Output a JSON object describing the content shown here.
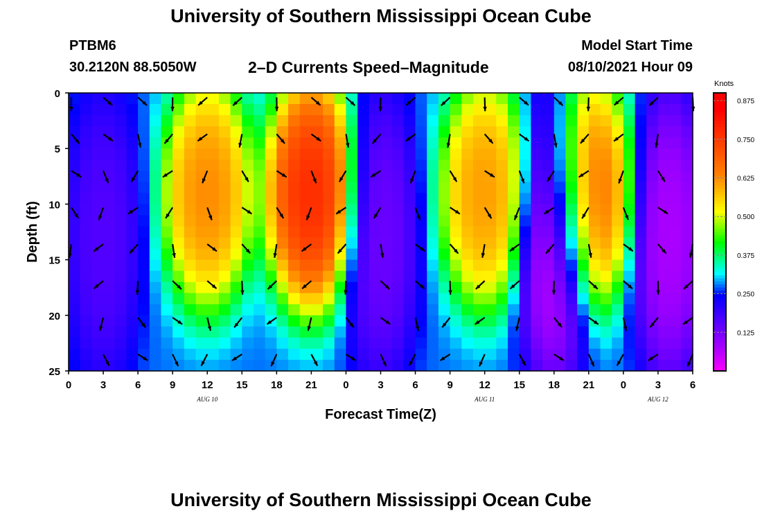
{
  "header": {
    "title": "University of Southern Mississippi Ocean Cube",
    "station": "PTBM6",
    "coordinates": "30.2120N  88.5050W",
    "subtitle": "2–D Currents Speed–Magnitude",
    "model_start_label": "Model Start Time",
    "model_start_value": "08/10/2021 Hour 09"
  },
  "footer": {
    "title": "University of Southern Mississippi Ocean Cube"
  },
  "chart_data": {
    "type": "heatmap",
    "xlabel": "Forecast Time(Z)",
    "ylabel": "Depth (ft)",
    "x_ticks": [
      "0",
      "3",
      "6",
      "9",
      "12",
      "15",
      "18",
      "21",
      "0",
      "3",
      "6",
      "9",
      "12",
      "15",
      "18",
      "21",
      "0",
      "3",
      "6"
    ],
    "x_range_hours": [
      0,
      54
    ],
    "date_labels": [
      {
        "label": "AUG 10",
        "at_hour": 12
      },
      {
        "label": "AUG 11",
        "at_hour": 36
      },
      {
        "label": "AUG 12",
        "at_hour": 51
      }
    ],
    "y_ticks": [
      0,
      5,
      10,
      15,
      20,
      25
    ],
    "ylim": [
      0,
      25
    ],
    "y_inverted": true,
    "colorbar": {
      "unit": "Knots",
      "ticks": [
        0.125,
        0.25,
        0.375,
        0.5,
        0.625,
        0.75,
        0.875
      ],
      "range": [
        0,
        0.9
      ]
    },
    "speed_maxima_knots": [
      {
        "hour": 12,
        "value": 0.68
      },
      {
        "hour": 21,
        "value": 0.85
      },
      {
        "hour": 36,
        "value": 0.66
      },
      {
        "hour": 45,
        "value": 0.72
      }
    ],
    "speed_minima_knots": [
      {
        "hour": 3,
        "value": 0.15
      },
      {
        "hour": 27,
        "value": 0.12
      },
      {
        "hour": 42,
        "value": 0.02
      },
      {
        "hour": 52,
        "value": 0.05
      }
    ],
    "vector_field": "current direction arrows at 3-hour intervals"
  }
}
